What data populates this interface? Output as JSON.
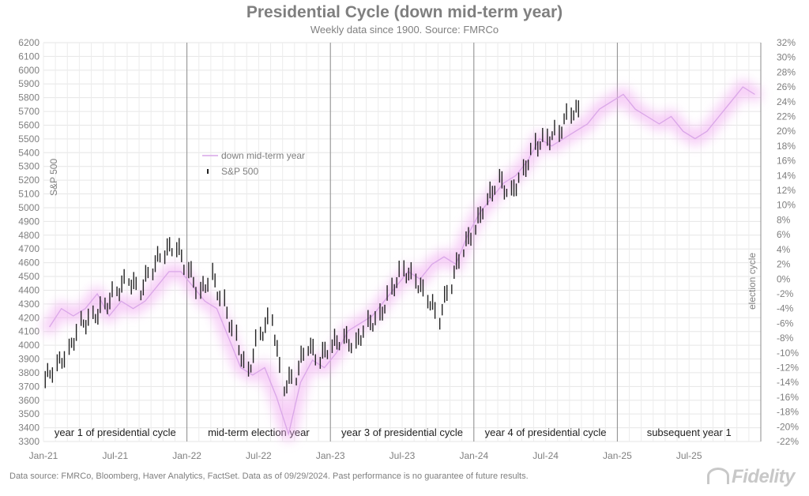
{
  "chart_data": {
    "type": "line",
    "title": "Presidential Cycle (down mid-term year)",
    "subtitle": "Weekly data since 1900. Source: FMRCo",
    "ylabel_left": "S&P 500",
    "ylabel_right": "election cycle",
    "x_ticks": [
      "Jan-21",
      "Jul-21",
      "Jan-22",
      "Jul-22",
      "Jan-23",
      "Jul-23",
      "Jan-24",
      "Jul-24",
      "Jan-25",
      "Jul-25"
    ],
    "ylim_left": [
      3300,
      6200
    ],
    "y_ticks_left": [
      3300,
      3400,
      3500,
      3600,
      3700,
      3800,
      3900,
      4000,
      4100,
      4200,
      4300,
      4400,
      4500,
      4600,
      4700,
      4800,
      4900,
      5000,
      5100,
      5200,
      5300,
      5400,
      5500,
      5600,
      5700,
      5800,
      5900,
      6000,
      6100,
      6200
    ],
    "ylim_right": [
      -22,
      32
    ],
    "y_ticks_right": [
      "-22%",
      "-20%",
      "-18%",
      "-16%",
      "-14%",
      "-12%",
      "-10%",
      "-8%",
      "-6%",
      "-4%",
      "-2%",
      "0%",
      "2%",
      "4%",
      "6%",
      "8%",
      "10%",
      "12%",
      "14%",
      "16%",
      "18%",
      "20%",
      "22%",
      "24%",
      "26%",
      "28%",
      "30%",
      "32%"
    ],
    "grid": true,
    "legend_placement": "upper-left-center",
    "legend": [
      "down mid-term year",
      "S&P 500"
    ],
    "phase_labels": [
      "year 1 of presidential cycle",
      "mid-term election year",
      "year 3 of presidential cycle",
      "year 4 of presidential cycle",
      "subsequent year 1"
    ],
    "series": [
      {
        "name": "down mid-term year",
        "axis": "right",
        "color": "#d9a6e8",
        "x": [
          "2021-01",
          "2021-02",
          "2021-03",
          "2021-04",
          "2021-05",
          "2021-06",
          "2021-07",
          "2021-08",
          "2021-09",
          "2021-10",
          "2021-11",
          "2021-12",
          "2022-01",
          "2022-02",
          "2022-03",
          "2022-04",
          "2022-05",
          "2022-06",
          "2022-07",
          "2022-08",
          "2022-09",
          "2022-10",
          "2022-11",
          "2022-12",
          "2023-01",
          "2023-02",
          "2023-03",
          "2023-04",
          "2023-05",
          "2023-06",
          "2023-07",
          "2023-08",
          "2023-09",
          "2023-10",
          "2023-11",
          "2023-12",
          "2024-01",
          "2024-02",
          "2024-03",
          "2024-04",
          "2024-05",
          "2024-06",
          "2024-07",
          "2024-08",
          "2024-09",
          "2024-10",
          "2024-11",
          "2024-12",
          "2025-01",
          "2025-02",
          "2025-03",
          "2025-04",
          "2025-05",
          "2025-06",
          "2025-07",
          "2025-08",
          "2025-09",
          "2025-10",
          "2025-11",
          "2025-12"
        ],
        "values": [
          -6.5,
          -4,
          -5,
          -4,
          -2,
          -5,
          -3,
          -4,
          -3,
          -1,
          1,
          1,
          -1,
          -3,
          -4,
          -8,
          -12,
          -13,
          -12,
          -16,
          -21,
          -14,
          -11,
          -12,
          -10,
          -7,
          -6,
          -5,
          -3,
          -1,
          1,
          0,
          2,
          3,
          2,
          6,
          9,
          11,
          13,
          14,
          16,
          19,
          18,
          19,
          20,
          21,
          23,
          24,
          25,
          23,
          22,
          21,
          22,
          20,
          19,
          20,
          22,
          24,
          26,
          25
        ]
      },
      {
        "name": "S&P 500",
        "axis": "left",
        "color": "#222222",
        "x": [
          "2021-01",
          "2021-02",
          "2021-03",
          "2021-04",
          "2021-05",
          "2021-06",
          "2021-07",
          "2021-08",
          "2021-09",
          "2021-10",
          "2021-11",
          "2021-12",
          "2022-01",
          "2022-02",
          "2022-03",
          "2022-04",
          "2022-05",
          "2022-06",
          "2022-07",
          "2022-08",
          "2022-09",
          "2022-10",
          "2022-11",
          "2022-12",
          "2023-01",
          "2023-02",
          "2023-03",
          "2023-04",
          "2023-05",
          "2023-06",
          "2023-07",
          "2023-08",
          "2023-09",
          "2023-10",
          "2023-11",
          "2023-12",
          "2024-01",
          "2024-02",
          "2024-03",
          "2024-04",
          "2024-05",
          "2024-06",
          "2024-07",
          "2024-08",
          "2024-09"
        ],
        "values": [
          3750,
          3850,
          3950,
          4150,
          4200,
          4280,
          4390,
          4480,
          4400,
          4560,
          4680,
          4720,
          4550,
          4380,
          4500,
          4300,
          4050,
          3800,
          4080,
          4200,
          3700,
          3780,
          4000,
          3900,
          4000,
          4050,
          4000,
          4150,
          4200,
          4400,
          4550,
          4480,
          4350,
          4200,
          4450,
          4700,
          4850,
          5050,
          5200,
          5100,
          5250,
          5450,
          5500,
          5550,
          5700
        ]
      }
    ]
  },
  "footer": "Data source: FMRCo, Bloomberg, Haver Analytics, FactSet. Data as of 09/29/2024. Past performance is no guarantee of future results.",
  "logo_text": "Fidelity"
}
